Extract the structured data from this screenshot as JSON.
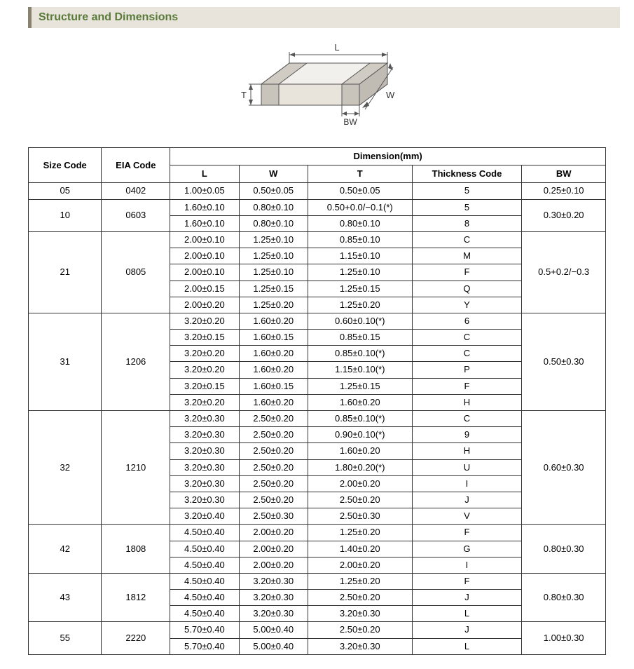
{
  "header": {
    "title": "Structure and Dimensions"
  },
  "diagram": {
    "labels": {
      "L": "L",
      "W": "W",
      "T": "T",
      "BW": "BW"
    },
    "stroke": "#555555",
    "fill_top": "#f2f0ec",
    "fill_side": "#d8d4cc",
    "fill_front": "#e8e4dc",
    "fill_end": "#c8c4bc"
  },
  "table": {
    "headers": {
      "size_code": "Size Code",
      "eia_code": "EIA Code",
      "dimension": "Dimension(mm)",
      "L": "L",
      "W": "W",
      "T": "T",
      "thickness_code": "Thickness Code",
      "BW": "BW"
    },
    "groups": [
      {
        "size": "05",
        "eia": "0402",
        "bw": "0.25±0.10",
        "rows": [
          {
            "L": "1.00±0.05",
            "W": "0.50±0.05",
            "T": "0.50±0.05",
            "tc": "5"
          }
        ]
      },
      {
        "size": "10",
        "eia": "0603",
        "bw": "0.30±0.20",
        "rows": [
          {
            "L": "1.60±0.10",
            "W": "0.80±0.10",
            "T": "0.50+0.0/−0.1(*)",
            "tc": "5"
          },
          {
            "L": "1.60±0.10",
            "W": "0.80±0.10",
            "T": "0.80±0.10",
            "tc": "8"
          }
        ]
      },
      {
        "size": "21",
        "eia": "0805",
        "bw": "0.5+0.2/−0.3",
        "rows": [
          {
            "L": "2.00±0.10",
            "W": "1.25±0.10",
            "T": "0.85±0.10",
            "tc": "C"
          },
          {
            "L": "2.00±0.10",
            "W": "1.25±0.10",
            "T": "1.15±0.10",
            "tc": "M"
          },
          {
            "L": "2.00±0.10",
            "W": "1.25±0.10",
            "T": "1.25±0.10",
            "tc": "F"
          },
          {
            "L": "2.00±0.15",
            "W": "1.25±0.15",
            "T": "1.25±0.15",
            "tc": "Q"
          },
          {
            "L": "2.00±0.20",
            "W": "1.25±0.20",
            "T": "1.25±0.20",
            "tc": "Y"
          }
        ]
      },
      {
        "size": "31",
        "eia": "1206",
        "bw": "0.50±0.30",
        "rows": [
          {
            "L": "3.20±0.20",
            "W": "1.60±0.20",
            "T": "0.60±0.10(*)",
            "tc": "6"
          },
          {
            "L": "3.20±0.15",
            "W": "1.60±0.15",
            "T": "0.85±0.15",
            "tc": "C"
          },
          {
            "L": "3.20±0.20",
            "W": "1.60±0.20",
            "T": "0.85±0.10(*)",
            "tc": "C"
          },
          {
            "L": "3.20±0.20",
            "W": "1.60±0.20",
            "T": "1.15±0.10(*)",
            "tc": "P"
          },
          {
            "L": "3.20±0.15",
            "W": "1.60±0.15",
            "T": "1.25±0.15",
            "tc": "F"
          },
          {
            "L": "3.20±0.20",
            "W": "1.60±0.20",
            "T": "1.60±0.20",
            "tc": "H"
          }
        ]
      },
      {
        "size": "32",
        "eia": "1210",
        "bw": "0.60±0.30",
        "rows": [
          {
            "L": "3.20±0.30",
            "W": "2.50±0.20",
            "T": "0.85±0.10(*)",
            "tc": "C"
          },
          {
            "L": "3.20±0.30",
            "W": "2.50±0.20",
            "T": "0.90±0.10(*)",
            "tc": "9"
          },
          {
            "L": "3.20±0.30",
            "W": "2.50±0.20",
            "T": "1.60±0.20",
            "tc": "H"
          },
          {
            "L": "3.20±0.30",
            "W": "2.50±0.20",
            "T": "1.80±0.20(*)",
            "tc": "U"
          },
          {
            "L": "3.20±0.30",
            "W": "2.50±0.20",
            "T": "2.00±0.20",
            "tc": "I"
          },
          {
            "L": "3.20±0.30",
            "W": "2.50±0.20",
            "T": "2.50±0.20",
            "tc": "J"
          },
          {
            "L": "3.20±0.40",
            "W": "2.50±0.30",
            "T": "2.50±0.30",
            "tc": "V"
          }
        ]
      },
      {
        "size": "42",
        "eia": "1808",
        "bw": "0.80±0.30",
        "rows": [
          {
            "L": "4.50±0.40",
            "W": "2.00±0.20",
            "T": "1.25±0.20",
            "tc": "F"
          },
          {
            "L": "4.50±0.40",
            "W": "2.00±0.20",
            "T": "1.40±0.20",
            "tc": "G"
          },
          {
            "L": "4.50±0.40",
            "W": "2.00±0.20",
            "T": "2.00±0.20",
            "tc": "I"
          }
        ]
      },
      {
        "size": "43",
        "eia": "1812",
        "bw": "0.80±0.30",
        "rows": [
          {
            "L": "4.50±0.40",
            "W": "3.20±0.30",
            "T": "1.25±0.20",
            "tc": "F"
          },
          {
            "L": "4.50±0.40",
            "W": "3.20±0.30",
            "T": "2.50±0.20",
            "tc": "J"
          },
          {
            "L": "4.50±0.40",
            "W": "3.20±0.30",
            "T": "3.20±0.30",
            "tc": "L"
          }
        ]
      },
      {
        "size": "55",
        "eia": "2220",
        "bw": "1.00±0.30",
        "rows": [
          {
            "L": "5.70±0.40",
            "W": "5.00±0.40",
            "T": "2.50±0.20",
            "tc": "J"
          },
          {
            "L": "5.70±0.40",
            "W": "5.00±0.40",
            "T": "3.20±0.30",
            "tc": "L"
          }
        ]
      }
    ]
  }
}
